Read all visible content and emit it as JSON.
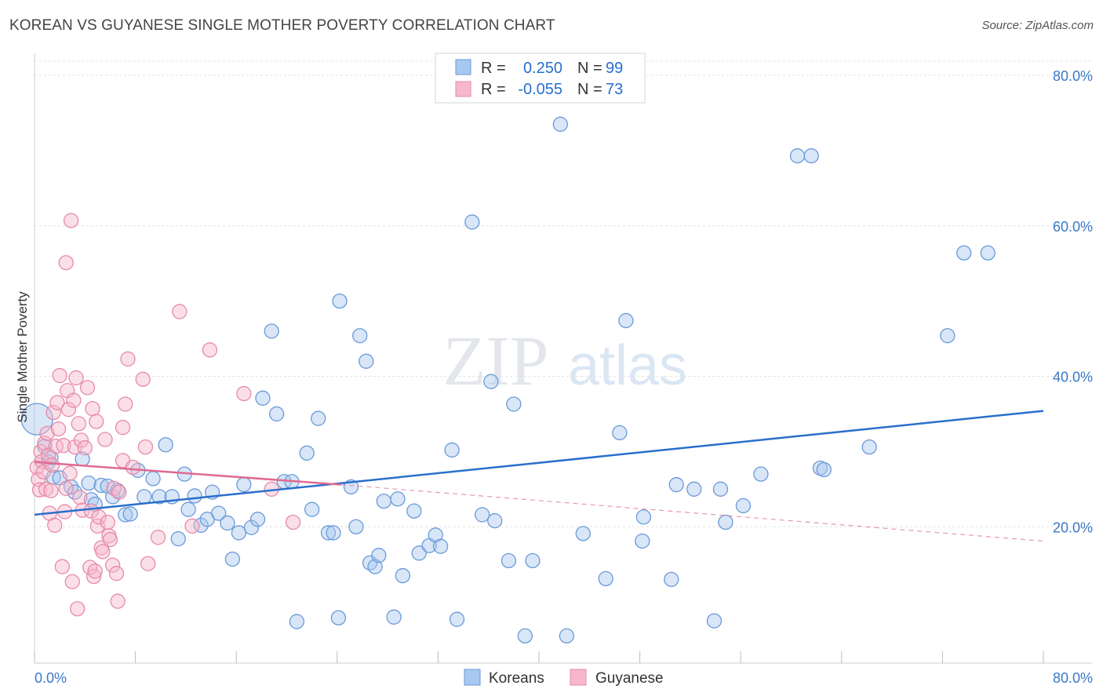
{
  "header": {
    "title": "KOREAN VS GUYANESE SINGLE MOTHER POVERTY CORRELATION CHART",
    "source": "Source: ZipAtlas.com"
  },
  "watermark": {
    "zip": "ZIP",
    "atlas": "atlas"
  },
  "legend_top": {
    "rows": [
      {
        "r_label": "R =",
        "r_value": "0.250",
        "n_label": "N =",
        "n_value": "99"
      },
      {
        "r_label": "R =",
        "r_value": "-0.055",
        "n_label": "N =",
        "n_value": "73"
      }
    ]
  },
  "legend_bottom": {
    "items": [
      "Koreans",
      "Guyanese"
    ]
  },
  "colors": {
    "korean_fill": "#a8c8f0",
    "korean_stroke": "#6a9ad8",
    "korean_line": "#2a6fcc",
    "guyanese_fill": "#f7b8cb",
    "guyanese_stroke": "#e68aa8",
    "guyanese_line": "#e06a92",
    "tick": "#3a78c8"
  },
  "chart_data": {
    "type": "scatter",
    "title": "KOREAN VS GUYANESE SINGLE MOTHER POVERTY CORRELATION CHART",
    "xlabel": "",
    "ylabel": "Single Mother Poverty",
    "xlim": [
      0,
      80
    ],
    "ylim": [
      0,
      80
    ],
    "x_tick_labels": [
      "0.0%",
      "80.0%"
    ],
    "y_ticks": [
      20,
      40,
      60,
      80
    ],
    "y_tick_labels": [
      "20.0%",
      "40.0%",
      "60.0%",
      "80.0%"
    ],
    "grid": true,
    "legend_position": "top-center",
    "series": [
      {
        "name": "Koreans",
        "r": 0.25,
        "n": 99,
        "trend": {
          "x0": 0,
          "y0": 21.6,
          "x1": 80,
          "y1": 35.4
        },
        "points": [
          [
            0.2,
            34.3
          ],
          [
            0.8,
            30.7
          ],
          [
            1.1,
            28.6
          ],
          [
            1.3,
            29.2
          ],
          [
            1.5,
            26.6
          ],
          [
            2.0,
            26.5
          ],
          [
            2.9,
            25.3
          ],
          [
            3.2,
            24.6
          ],
          [
            3.8,
            29.0
          ],
          [
            4.5,
            23.6
          ],
          [
            4.3,
            25.8
          ],
          [
            4.8,
            23.0
          ],
          [
            5.3,
            25.5
          ],
          [
            5.8,
            25.4
          ],
          [
            6.2,
            24.0
          ],
          [
            6.6,
            24.8
          ],
          [
            7.2,
            21.6
          ],
          [
            7.6,
            21.7
          ],
          [
            8.2,
            27.5
          ],
          [
            8.7,
            24.0
          ],
          [
            9.4,
            26.4
          ],
          [
            9.9,
            24.0
          ],
          [
            10.4,
            30.9
          ],
          [
            10.9,
            24.0
          ],
          [
            11.4,
            18.4
          ],
          [
            11.9,
            27.0
          ],
          [
            12.2,
            22.3
          ],
          [
            12.7,
            24.1
          ],
          [
            13.2,
            20.2
          ],
          [
            13.7,
            21.0
          ],
          [
            14.1,
            24.6
          ],
          [
            14.6,
            21.8
          ],
          [
            15.3,
            20.5
          ],
          [
            15.7,
            15.7
          ],
          [
            16.2,
            19.2
          ],
          [
            16.6,
            25.6
          ],
          [
            17.2,
            19.9
          ],
          [
            17.7,
            21.0
          ],
          [
            18.1,
            37.1
          ],
          [
            18.8,
            46.0
          ],
          [
            19.2,
            35.0
          ],
          [
            19.8,
            26.0
          ],
          [
            20.4,
            26.0
          ],
          [
            20.8,
            7.4
          ],
          [
            21.6,
            29.8
          ],
          [
            22.0,
            22.3
          ],
          [
            22.5,
            34.4
          ],
          [
            23.3,
            19.2
          ],
          [
            23.7,
            19.2
          ],
          [
            24.1,
            7.9
          ],
          [
            24.2,
            50.0
          ],
          [
            25.1,
            25.3
          ],
          [
            25.5,
            20.0
          ],
          [
            25.8,
            45.4
          ],
          [
            26.3,
            42.0
          ],
          [
            26.6,
            15.2
          ],
          [
            27.0,
            14.7
          ],
          [
            27.3,
            16.2
          ],
          [
            27.7,
            23.4
          ],
          [
            28.5,
            8.0
          ],
          [
            28.8,
            23.7
          ],
          [
            29.2,
            13.5
          ],
          [
            30.1,
            22.1
          ],
          [
            30.5,
            16.5
          ],
          [
            31.3,
            17.5
          ],
          [
            31.8,
            18.9
          ],
          [
            32.2,
            17.4
          ],
          [
            33.1,
            30.2
          ],
          [
            33.5,
            7.7
          ],
          [
            34.7,
            60.5
          ],
          [
            35.5,
            21.6
          ],
          [
            36.2,
            39.3
          ],
          [
            36.5,
            20.8
          ],
          [
            37.6,
            15.5
          ],
          [
            38.0,
            36.3
          ],
          [
            38.9,
            5.5
          ],
          [
            39.5,
            15.5
          ],
          [
            41.7,
            73.5
          ],
          [
            42.2,
            5.5
          ],
          [
            43.5,
            19.1
          ],
          [
            45.3,
            13.1
          ],
          [
            46.4,
            32.5
          ],
          [
            46.9,
            47.4
          ],
          [
            48.2,
            18.1
          ],
          [
            48.3,
            21.3
          ],
          [
            50.5,
            13.0
          ],
          [
            50.9,
            25.6
          ],
          [
            52.3,
            25.0
          ],
          [
            53.9,
            7.5
          ],
          [
            54.4,
            25.0
          ],
          [
            54.8,
            20.6
          ],
          [
            56.2,
            22.8
          ],
          [
            57.6,
            27.0
          ],
          [
            60.5,
            69.3
          ],
          [
            61.6,
            69.3
          ],
          [
            62.3,
            27.8
          ],
          [
            62.6,
            27.6
          ],
          [
            66.2,
            30.6
          ],
          [
            72.4,
            45.4
          ],
          [
            73.7,
            56.4
          ],
          [
            75.6,
            56.4
          ]
        ]
      },
      {
        "name": "Guyanese",
        "r": -0.055,
        "n": 73,
        "trend_solid": {
          "x0": 0,
          "y0": 28.6,
          "x1": 24.3,
          "y1": 25.6
        },
        "trend_dashed": {
          "x0": 24.3,
          "y0": 25.6,
          "x1": 80,
          "y1": 18.1
        },
        "points": [
          [
            0.2,
            27.9
          ],
          [
            0.3,
            26.3
          ],
          [
            0.4,
            24.9
          ],
          [
            0.5,
            30.0
          ],
          [
            0.6,
            28.7
          ],
          [
            0.7,
            27.3
          ],
          [
            0.8,
            31.1
          ],
          [
            0.9,
            25.0
          ],
          [
            1.0,
            32.4
          ],
          [
            1.1,
            29.5
          ],
          [
            1.2,
            21.8
          ],
          [
            1.3,
            24.8
          ],
          [
            1.4,
            28.2
          ],
          [
            1.5,
            35.2
          ],
          [
            1.6,
            20.2
          ],
          [
            1.7,
            30.7
          ],
          [
            1.8,
            36.5
          ],
          [
            1.9,
            33.0
          ],
          [
            2.0,
            40.1
          ],
          [
            2.2,
            14.7
          ],
          [
            2.3,
            30.8
          ],
          [
            2.4,
            22.0
          ],
          [
            2.5,
            25.1
          ],
          [
            2.6,
            38.1
          ],
          [
            2.7,
            35.6
          ],
          [
            2.8,
            27.1
          ],
          [
            2.9,
            60.7
          ],
          [
            3.0,
            12.7
          ],
          [
            3.1,
            36.8
          ],
          [
            3.2,
            30.6
          ],
          [
            3.3,
            39.8
          ],
          [
            3.4,
            9.1
          ],
          [
            3.5,
            33.7
          ],
          [
            3.6,
            23.9
          ],
          [
            3.7,
            31.5
          ],
          [
            3.8,
            22.2
          ],
          [
            4.0,
            30.5
          ],
          [
            4.2,
            38.5
          ],
          [
            4.4,
            14.6
          ],
          [
            4.5,
            22.1
          ],
          [
            4.6,
            35.7
          ],
          [
            4.7,
            13.4
          ],
          [
            4.8,
            14.1
          ],
          [
            4.9,
            34.0
          ],
          [
            5.0,
            20.1
          ],
          [
            5.1,
            21.3
          ],
          [
            5.3,
            17.2
          ],
          [
            5.4,
            16.7
          ],
          [
            5.6,
            31.6
          ],
          [
            5.8,
            20.6
          ],
          [
            5.9,
            18.8
          ],
          [
            6.0,
            18.3
          ],
          [
            6.2,
            14.9
          ],
          [
            6.3,
            25.1
          ],
          [
            6.5,
            13.8
          ],
          [
            6.6,
            10.1
          ],
          [
            6.7,
            24.6
          ],
          [
            7.0,
            28.8
          ],
          [
            7.2,
            36.3
          ],
          [
            7.4,
            42.3
          ],
          [
            7.8,
            27.9
          ],
          [
            7.0,
            33.2
          ],
          [
            8.6,
            39.6
          ],
          [
            8.8,
            30.6
          ],
          [
            9.0,
            15.1
          ],
          [
            9.8,
            18.6
          ],
          [
            11.5,
            48.6
          ],
          [
            12.5,
            20.1
          ],
          [
            13.9,
            43.5
          ],
          [
            16.6,
            37.7
          ],
          [
            18.8,
            25.0
          ],
          [
            20.5,
            20.6
          ],
          [
            2.5,
            55.1
          ]
        ]
      }
    ]
  }
}
